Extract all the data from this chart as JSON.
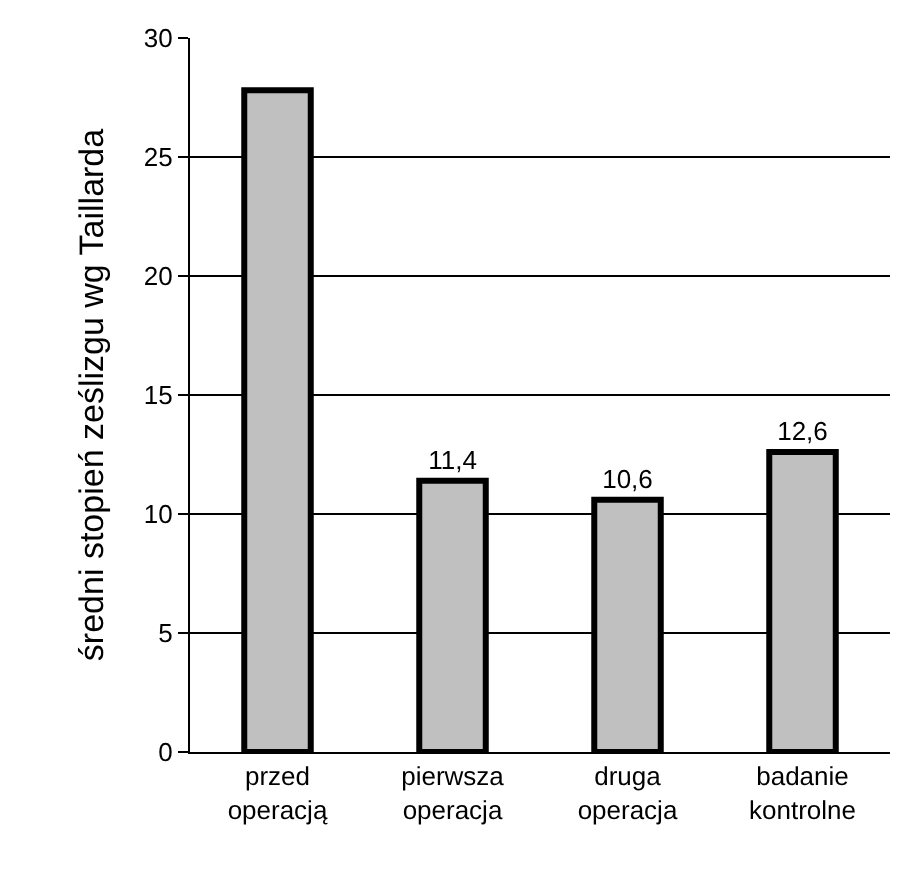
{
  "chart_data": {
    "type": "bar",
    "ylabel": "średni stopień ześlizgu wg Taillarda",
    "categories": [
      "przed\noperacją",
      "pierwsza\noperacja",
      "druga\noperacja",
      "badanie\nkontrolne"
    ],
    "values": [
      27.8,
      11.4,
      10.6,
      12.6
    ],
    "value_labels": [
      null,
      "11,4",
      "10,6",
      "12,6"
    ],
    "color": "#c0c0c0",
    "ylim": [
      0,
      30
    ],
    "yticks": [
      0,
      5,
      10,
      15,
      20,
      25,
      30
    ],
    "grid": "y",
    "legend": false
  }
}
